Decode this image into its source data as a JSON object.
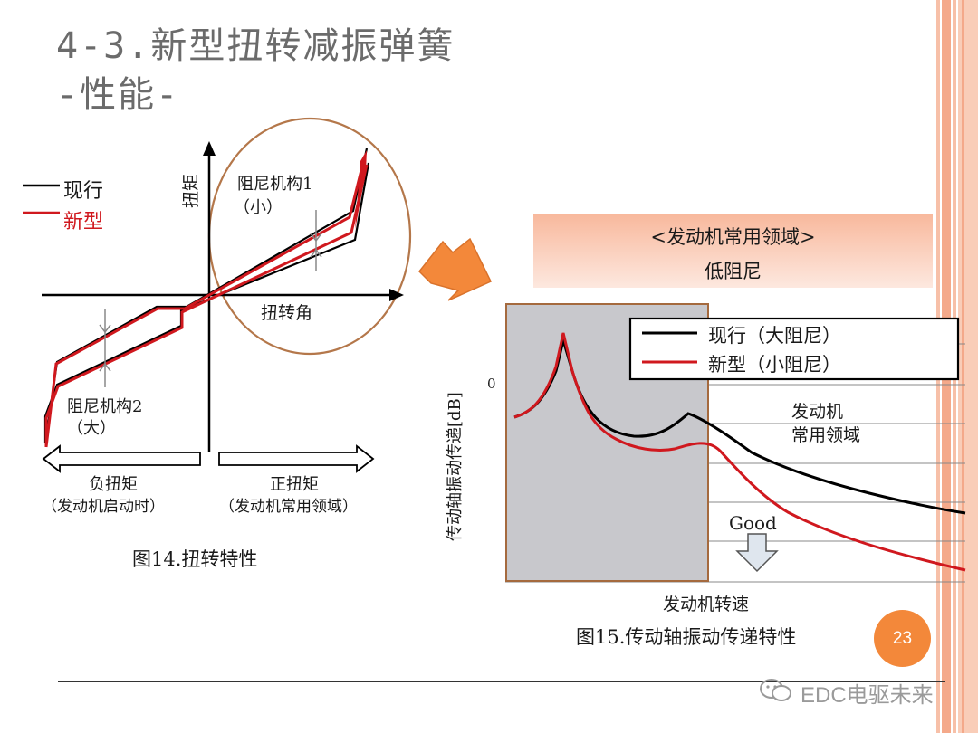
{
  "slide": {
    "title_line1": "4-3.新型扭转减振弹簧",
    "title_line2": "-性能-",
    "page_number": "23",
    "watermark": "EDC电驱未来"
  },
  "colors": {
    "current": "#000000",
    "new": "#d0181e",
    "accent_orange": "#f3883a",
    "circle_brown": "#b4774a",
    "shade_gray": "#c8c8cc",
    "stripe_peach": "#f7c0a8"
  },
  "fig14": {
    "legend_current": "现行",
    "legend_new": "新型",
    "y_axis_label": "扭矩",
    "x_axis_label": "扭转角",
    "damper1_line1": "阻尼机构1",
    "damper1_line2": "（小）",
    "damper2_line1": "阻尼机构2",
    "damper2_line2": "（大）",
    "neg_line1": "负扭矩",
    "neg_line2": "（发动机启动时）",
    "pos_line1": "正扭矩",
    "pos_line2": "（发动机常用领域）",
    "caption": "图14.扭转特性"
  },
  "fig15": {
    "banner_line1": "<发动机常用领域>",
    "banner_line2": "低阻尼",
    "legend_current": "现行（大阻尼）",
    "legend_new": "新型（小阻尼）",
    "y_axis_label": "传动轴振动传递[dB]",
    "y_tick_zero": "0",
    "x_axis_label": "发动机转速",
    "region_line1": "发动机",
    "region_line2": "常用领域",
    "good_label": "Good",
    "caption": "图15.传动轴振动传递特性"
  }
}
